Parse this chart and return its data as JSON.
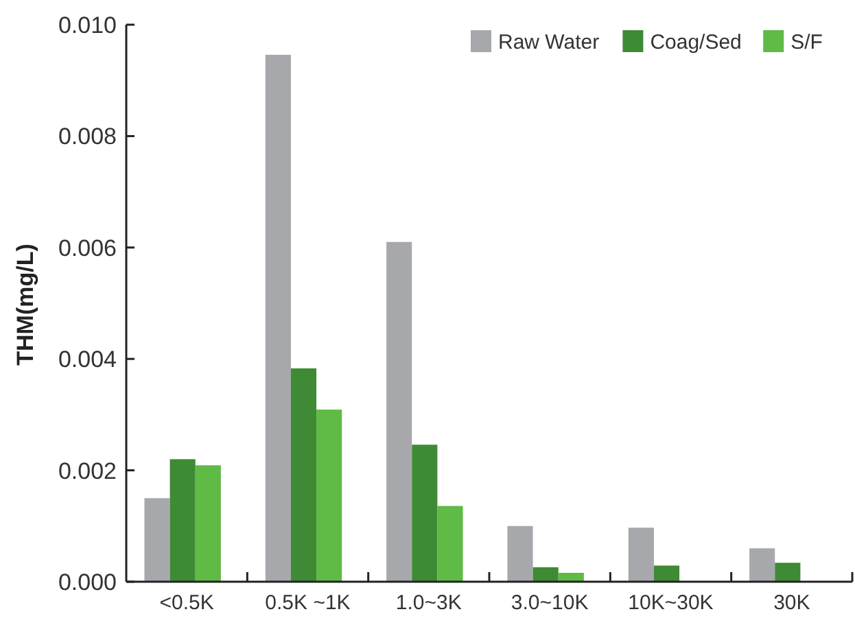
{
  "chart_data": {
    "type": "bar",
    "ylabel": "THM(mg/L)",
    "categories": [
      "<0.5K",
      "0.5K ~1K",
      "1.0~3K",
      "3.0~10K",
      "10K~30K",
      "30K"
    ],
    "series": [
      {
        "name": "Raw Water",
        "color": "#a7a8ac",
        "values": [
          0.0015,
          0.00946,
          0.0061,
          0.001,
          0.00097,
          0.0006
        ]
      },
      {
        "name": "Coag/Sed",
        "color": "#3f8a34",
        "values": [
          0.0022,
          0.00383,
          0.00246,
          0.00026,
          0.00029,
          0.00034
        ]
      },
      {
        "name": "S/F",
        "color": "#5fba46",
        "values": [
          0.00209,
          0.00309,
          0.00136,
          0.00016,
          null,
          null
        ]
      }
    ],
    "ylim": [
      0,
      0.01
    ],
    "yticks": [
      {
        "value": 0,
        "label": "0.000"
      },
      {
        "value": 0.002,
        "label": "0.002"
      },
      {
        "value": 0.004,
        "label": "0.004"
      },
      {
        "value": 0.006,
        "label": "0.006"
      },
      {
        "value": 0.008,
        "label": "0.008"
      },
      {
        "value": 0.01,
        "label": "0.010"
      }
    ],
    "grid": false,
    "legend": "top right"
  }
}
